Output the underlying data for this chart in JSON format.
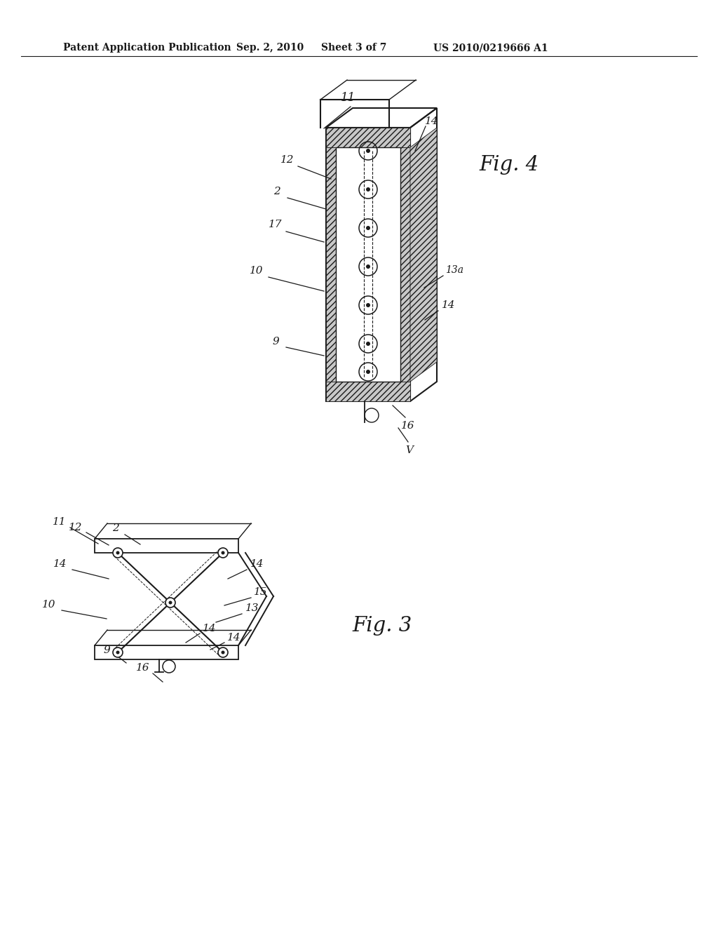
{
  "background_color": "#ffffff",
  "header_text": "Patent Application Publication",
  "header_date": "Sep. 2, 2010",
  "header_sheet": "Sheet 3 of 7",
  "header_patent": "US 2010/0219666 A1",
  "fig4_label": "Fig. 4",
  "fig3_label": "Fig. 3",
  "line_color": "#1a1a1a"
}
